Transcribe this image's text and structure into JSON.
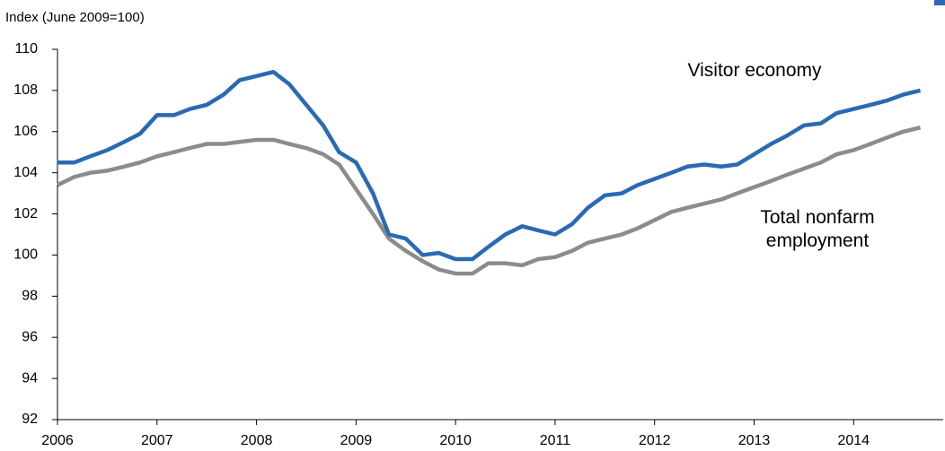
{
  "chart_data": {
    "type": "line",
    "ylabel": "Index (June 2009=100)",
    "x": [
      2006.0,
      2006.17,
      2006.33,
      2006.5,
      2006.67,
      2006.83,
      2007.0,
      2007.17,
      2007.33,
      2007.5,
      2007.67,
      2007.83,
      2008.0,
      2008.17,
      2008.33,
      2008.5,
      2008.67,
      2008.83,
      2009.0,
      2009.17,
      2009.33,
      2009.5,
      2009.67,
      2009.83,
      2010.0,
      2010.17,
      2010.33,
      2010.5,
      2010.67,
      2010.83,
      2011.0,
      2011.17,
      2011.33,
      2011.5,
      2011.67,
      2011.83,
      2012.0,
      2012.17,
      2012.33,
      2012.5,
      2012.67,
      2012.83,
      2013.0,
      2013.17,
      2013.33,
      2013.5,
      2013.67,
      2013.83,
      2014.0,
      2014.17,
      2014.33,
      2014.5,
      2014.67
    ],
    "series": [
      {
        "name": "Visitor economy",
        "color": "#2a6ab3",
        "values": [
          104.5,
          104.5,
          104.8,
          105.1,
          105.5,
          105.9,
          106.8,
          106.8,
          107.1,
          107.3,
          107.8,
          108.5,
          108.7,
          108.9,
          108.3,
          107.3,
          106.3,
          105.0,
          104.5,
          103.0,
          101.0,
          100.8,
          100.0,
          100.1,
          99.8,
          99.8,
          100.4,
          101.0,
          101.4,
          101.2,
          101.0,
          101.5,
          102.3,
          102.9,
          103.0,
          103.4,
          103.7,
          104.0,
          104.3,
          104.4,
          104.3,
          104.4,
          104.9,
          105.4,
          105.8,
          106.3,
          106.4,
          106.9,
          107.1,
          107.3,
          107.5,
          107.8,
          108.0
        ]
      },
      {
        "name": "Total nonfarm employment",
        "color": "#8c8c8c",
        "values": [
          103.4,
          103.8,
          104.0,
          104.1,
          104.3,
          104.5,
          104.8,
          105.0,
          105.2,
          105.4,
          105.4,
          105.5,
          105.6,
          105.6,
          105.4,
          105.2,
          104.9,
          104.4,
          103.2,
          102.0,
          100.8,
          100.2,
          99.7,
          99.3,
          99.1,
          99.1,
          99.6,
          99.6,
          99.5,
          99.8,
          99.9,
          100.2,
          100.6,
          100.8,
          101.0,
          101.3,
          101.7,
          102.1,
          102.3,
          102.5,
          102.7,
          103.0,
          103.3,
          103.6,
          103.9,
          104.2,
          104.5,
          104.9,
          105.1,
          105.4,
          105.7,
          106.0,
          106.2
        ]
      }
    ],
    "xlim": [
      2006,
      2014.9
    ],
    "xticks": [
      2006,
      2007,
      2008,
      2009,
      2010,
      2011,
      2012,
      2013,
      2014
    ],
    "ylim": [
      92,
      110
    ],
    "yticks": [
      92,
      94,
      96,
      98,
      100,
      102,
      104,
      106,
      108,
      110
    ],
    "grid": false
  }
}
